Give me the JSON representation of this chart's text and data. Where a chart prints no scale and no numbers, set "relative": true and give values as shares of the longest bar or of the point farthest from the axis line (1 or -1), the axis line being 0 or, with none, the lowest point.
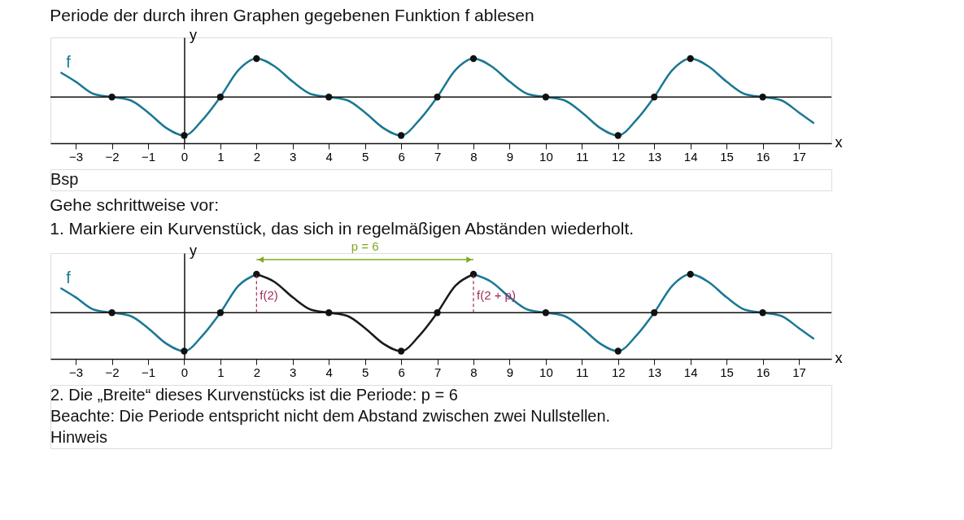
{
  "chart_data": [
    {
      "type": "line",
      "title": "Periode der durch ihren Graphen gegebenen Funktion f ablesen",
      "xlabel": "x",
      "ylabel": "y",
      "relative": true,
      "xlim": [
        -3.7,
        17.9
      ],
      "xticks": [
        -3,
        -2,
        -1,
        0,
        1,
        2,
        3,
        4,
        5,
        6,
        7,
        8,
        9,
        10,
        11,
        12,
        13,
        14,
        15,
        16,
        17
      ],
      "x": [
        -3.4,
        -3,
        -2.5,
        -2,
        -1.5,
        -1,
        -0.5,
        0,
        0.5,
        1,
        1.5,
        2,
        2.5,
        3,
        3.5,
        4,
        4.5,
        5,
        5.5,
        6,
        6.5,
        7,
        7.5,
        8,
        8.5,
        9,
        9.5,
        10,
        10.5,
        11,
        11.5,
        12,
        12.5,
        13,
        13.5,
        14,
        14.5,
        15,
        15.5,
        16,
        16.5,
        17,
        17.4
      ],
      "series": [
        {
          "name": "f",
          "type": "line",
          "color": "#1a7893",
          "values": [
            0.63,
            0.4,
            0.08,
            0,
            -0.08,
            -0.4,
            -0.8,
            -1,
            -0.6,
            0,
            0.7,
            1,
            0.8,
            0.4,
            0.08,
            0,
            -0.08,
            -0.4,
            -0.8,
            -1,
            -0.6,
            0,
            0.7,
            1,
            0.8,
            0.4,
            0.08,
            0,
            -0.08,
            -0.4,
            -0.8,
            -1,
            -0.6,
            0,
            0.7,
            1,
            0.8,
            0.4,
            0.08,
            0,
            -0.08,
            -0.4,
            -0.67
          ]
        },
        {
          "type": "scatter",
          "marker": "circle",
          "color": "#111111",
          "x": [
            -2,
            0,
            1,
            2,
            4,
            6,
            7,
            8,
            10,
            12,
            13,
            14,
            16
          ],
          "values": [
            0,
            -1,
            0,
            1,
            0,
            -1,
            0,
            1,
            0,
            -1,
            0,
            1,
            0
          ]
        }
      ],
      "annotations": [
        "Bsp"
      ]
    },
    {
      "type": "line",
      "title": "Gehe schrittweise vor:",
      "subtitle": "1. Markiere ein Kurvenstück, das sich in regelmäßigen Abständen wiederholt.",
      "xlabel": "x",
      "ylabel": "y",
      "relative": true,
      "xlim": [
        -3.7,
        17.9
      ],
      "xticks": [
        -3,
        -2,
        -1,
        0,
        1,
        2,
        3,
        4,
        5,
        6,
        7,
        8,
        9,
        10,
        11,
        12,
        13,
        14,
        15,
        16,
        17
      ],
      "x": [
        -3.4,
        -3,
        -2.5,
        -2,
        -1.5,
        -1,
        -0.5,
        0,
        0.5,
        1,
        1.5,
        2,
        2.5,
        3,
        3.5,
        4,
        4.5,
        5,
        5.5,
        6,
        6.5,
        7,
        7.5,
        8,
        8.5,
        9,
        9.5,
        10,
        10.5,
        11,
        11.5,
        12,
        12.5,
        13,
        13.5,
        14,
        14.5,
        15,
        15.5,
        16,
        16.5,
        17,
        17.4
      ],
      "series": [
        {
          "name": "f",
          "type": "line",
          "color": "#1a7893",
          "values": [
            0.63,
            0.4,
            0.08,
            0,
            -0.08,
            -0.4,
            -0.8,
            -1,
            -0.6,
            0,
            0.7,
            1,
            null,
            null,
            null,
            null,
            null,
            null,
            null,
            null,
            null,
            null,
            null,
            1,
            0.8,
            0.4,
            0.08,
            0,
            -0.08,
            -0.4,
            -0.8,
            -1,
            -0.6,
            0,
            0.7,
            1,
            0.8,
            0.4,
            0.08,
            0,
            -0.08,
            -0.4,
            -0.67
          ]
        },
        {
          "type": "line",
          "color": "#1a1a1a",
          "x": [
            2,
            2.5,
            3,
            3.5,
            4,
            4.5,
            5,
            5.5,
            6,
            6.5,
            7,
            7.5,
            8
          ],
          "values": [
            1,
            0.8,
            0.4,
            0.08,
            0,
            -0.08,
            -0.4,
            -0.8,
            -1,
            -0.6,
            0,
            0.7,
            1
          ]
        },
        {
          "type": "scatter",
          "marker": "circle",
          "color": "#111111",
          "x": [
            -2,
            0,
            1,
            2,
            4,
            6,
            7,
            8,
            10,
            12,
            13,
            14,
            16
          ],
          "values": [
            0,
            -1,
            0,
            1,
            0,
            -1,
            0,
            1,
            0,
            -1,
            0,
            1,
            0
          ]
        }
      ],
      "ref_lines": [
        {
          "axis": "x",
          "value": 2,
          "label": "f(2)",
          "color": "#a3295a",
          "line_style": "dashed"
        },
        {
          "axis": "x",
          "value": 8,
          "label": "f(2 + p)",
          "color": "#a3295a",
          "line_style": "dashed"
        }
      ],
      "annotations": [
        "p = 6",
        "2. Die „Breite“ dieses Kurvenstücks ist die Periode:  p = 6",
        "Beachte: Die Periode entspricht nicht dem Abstand zwischen zwei Nullstellen.",
        "Hinweis"
      ]
    }
  ]
}
